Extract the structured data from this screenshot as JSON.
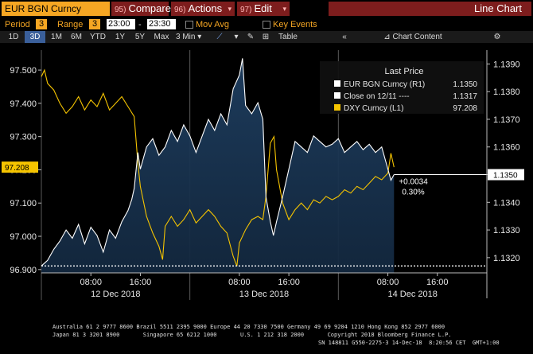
{
  "toolbar": {
    "security": "EUR BGN Curncy",
    "buttons": [
      {
        "num": "95)",
        "label": "Compare"
      },
      {
        "num": "96)",
        "label": "Actions"
      },
      {
        "num": "97)",
        "label": "Edit"
      }
    ],
    "view_title": "Line Chart"
  },
  "controls": {
    "period_label": "Period",
    "period_value": "3",
    "range_label": "Range",
    "range_value": "3",
    "range_from": "23:00",
    "range_sep": "-",
    "range_to": "23:30",
    "mov_avg_label": "Mov Avg",
    "key_events_label": "Key Events"
  },
  "timeframes": [
    "1D",
    "3D",
    "1M",
    "6M",
    "YTD",
    "1Y",
    "5Y",
    "Max"
  ],
  "selected_timeframe": "3D",
  "interval": "3 Min",
  "table_label": "Table",
  "chart_content_label": "Chart Content",
  "legend": {
    "title": "Last Price",
    "items": [
      {
        "label": "EUR BGN Curncy  (R1)",
        "value": "1.1350",
        "color": "#ffffff"
      },
      {
        "label": "Close on 12/11 ----",
        "value": "1.1317",
        "color": "#ffffff"
      },
      {
        "label": "DXY Curncy  (L1)",
        "value": "97.208",
        "color": "#f5c400"
      }
    ]
  },
  "chart_data": {
    "type": "line",
    "left_axis": {
      "ticks": [
        "97.500",
        "97.400",
        "97.300",
        "97.200",
        "97.100",
        "97.000",
        "96.900"
      ],
      "range": [
        96.89,
        97.56
      ],
      "current": "97.208"
    },
    "right_axis": {
      "ticks": [
        "1.1390",
        "1.1380",
        "1.1370",
        "1.1360",
        "1.1350",
        "1.1340",
        "1.1330",
        "1.1320"
      ],
      "range": [
        1.13145,
        1.1395
      ],
      "current": "1.1350"
    },
    "x_ticks": [
      {
        "t": 8,
        "label": "08:00"
      },
      {
        "t": 16,
        "label": "16:00"
      },
      {
        "t": 32,
        "label": "08:00"
      },
      {
        "t": 40,
        "label": "16:00"
      },
      {
        "t": 56,
        "label": "08:00"
      },
      {
        "t": 64,
        "label": "16:00"
      }
    ],
    "x_days": [
      {
        "t": 12,
        "label": "12 Dec 2018"
      },
      {
        "t": 36,
        "label": "13 Dec 2018"
      },
      {
        "t": 60,
        "label": "14 Dec 2018"
      }
    ],
    "day_separators": [
      0,
      24,
      48
    ],
    "x_range": [
      0,
      72
    ],
    "reference_line": {
      "value": 1.1317
    },
    "change_annotation": {
      "abs": "+0.0034",
      "pct": "0.30%"
    },
    "series": [
      {
        "name": "EUR BGN Curncy",
        "axis": "right",
        "color": "#ffffff",
        "points": [
          [
            0,
            1.1317
          ],
          [
            1,
            1.1319
          ],
          [
            2,
            1.1323
          ],
          [
            3,
            1.1326
          ],
          [
            4,
            1.133
          ],
          [
            5,
            1.1327
          ],
          [
            6,
            1.1332
          ],
          [
            7,
            1.1325
          ],
          [
            8,
            1.1331
          ],
          [
            9,
            1.1328
          ],
          [
            10,
            1.1322
          ],
          [
            11,
            1.133
          ],
          [
            12,
            1.1327
          ],
          [
            13,
            1.1333
          ],
          [
            14,
            1.1337
          ],
          [
            14.6,
            1.1341
          ],
          [
            15,
            1.1345
          ],
          [
            15.6,
            1.1358
          ],
          [
            16,
            1.1352
          ],
          [
            17,
            1.136
          ],
          [
            18,
            1.1363
          ],
          [
            19,
            1.1357
          ],
          [
            20,
            1.136
          ],
          [
            21,
            1.1366
          ],
          [
            22,
            1.1362
          ],
          [
            23,
            1.1368
          ],
          [
            24,
            1.1364
          ],
          [
            25,
            1.1358
          ],
          [
            26,
            1.1364
          ],
          [
            27,
            1.137
          ],
          [
            28,
            1.1366
          ],
          [
            29,
            1.1372
          ],
          [
            30,
            1.1368
          ],
          [
            31,
            1.1381
          ],
          [
            32,
            1.1386
          ],
          [
            32.5,
            1.1392
          ],
          [
            33,
            1.1375
          ],
          [
            34,
            1.1372
          ],
          [
            35,
            1.1376
          ],
          [
            35.8,
            1.137
          ],
          [
            36.3,
            1.1342
          ],
          [
            37,
            1.1333
          ],
          [
            37.5,
            1.1328
          ],
          [
            38,
            1.1333
          ],
          [
            39,
            1.1342
          ],
          [
            40,
            1.1352
          ],
          [
            41,
            1.1362
          ],
          [
            42,
            1.136
          ],
          [
            43,
            1.1358
          ],
          [
            44,
            1.1364
          ],
          [
            45,
            1.1362
          ],
          [
            46,
            1.136
          ],
          [
            47,
            1.1361
          ],
          [
            48,
            1.1363
          ],
          [
            49,
            1.1358
          ],
          [
            50,
            1.136
          ],
          [
            51,
            1.1362
          ],
          [
            52,
            1.1359
          ],
          [
            53,
            1.1361
          ],
          [
            54,
            1.1358
          ],
          [
            55,
            1.136
          ],
          [
            56,
            1.1352
          ],
          [
            56.5,
            1.1348
          ],
          [
            57,
            1.135
          ]
        ]
      },
      {
        "name": "DXY Curncy",
        "axis": "left",
        "color": "#f5c400",
        "points": [
          [
            0,
            97.48
          ],
          [
            0.5,
            97.5
          ],
          [
            1,
            97.46
          ],
          [
            2,
            97.44
          ],
          [
            3,
            97.4
          ],
          [
            4,
            97.37
          ],
          [
            5,
            97.39
          ],
          [
            6,
            97.42
          ],
          [
            7,
            97.38
          ],
          [
            8,
            97.41
          ],
          [
            9,
            97.39
          ],
          [
            10,
            97.43
          ],
          [
            11,
            97.38
          ],
          [
            12,
            97.4
          ],
          [
            13,
            97.42
          ],
          [
            14,
            97.39
          ],
          [
            15,
            97.36
          ],
          [
            15.6,
            97.22
          ],
          [
            16,
            97.15
          ],
          [
            17,
            97.06
          ],
          [
            18,
            97.01
          ],
          [
            19,
            96.97
          ],
          [
            19.6,
            96.93
          ],
          [
            20,
            97.03
          ],
          [
            21,
            97.06
          ],
          [
            22,
            97.03
          ],
          [
            23,
            97.05
          ],
          [
            24,
            97.08
          ],
          [
            25,
            97.04
          ],
          [
            26,
            97.06
          ],
          [
            27,
            97.08
          ],
          [
            28,
            97.06
          ],
          [
            29,
            97.03
          ],
          [
            30,
            97.01
          ],
          [
            31,
            96.94
          ],
          [
            31.6,
            96.91
          ],
          [
            32,
            96.98
          ],
          [
            33,
            97.02
          ],
          [
            34,
            97.05
          ],
          [
            35,
            97.06
          ],
          [
            35.8,
            97.05
          ],
          [
            36.3,
            97.12
          ],
          [
            37,
            97.28
          ],
          [
            37.6,
            97.3
          ],
          [
            38,
            97.2
          ],
          [
            39,
            97.1
          ],
          [
            40,
            97.05
          ],
          [
            41,
            97.08
          ],
          [
            42,
            97.1
          ],
          [
            43,
            97.08
          ],
          [
            44,
            97.11
          ],
          [
            45,
            97.1
          ],
          [
            46,
            97.12
          ],
          [
            47,
            97.11
          ],
          [
            48,
            97.12
          ],
          [
            49,
            97.14
          ],
          [
            50,
            97.13
          ],
          [
            51,
            97.15
          ],
          [
            52,
            97.14
          ],
          [
            53,
            97.16
          ],
          [
            54,
            97.18
          ],
          [
            55,
            97.17
          ],
          [
            56,
            97.19
          ],
          [
            56.5,
            97.25
          ],
          [
            57,
            97.208
          ]
        ]
      }
    ]
  },
  "footer": {
    "line1": "Australia 61 2 9777 8600 Brazil 5511 2395 9000 Europe 44 20 7330 7500 Germany 49 69 9204 1210 Hong Kong 852 2977 6000",
    "line2": "Japan 81 3 3201 8900       Singapore 65 6212 1000       U.S. 1 212 318 2000       Copyright 2018 Bloomberg Finance L.P.",
    "line3": "SN 148811 G550-2275-3 14-Dec-18  8:20:56 CET  GMT+1:00"
  }
}
